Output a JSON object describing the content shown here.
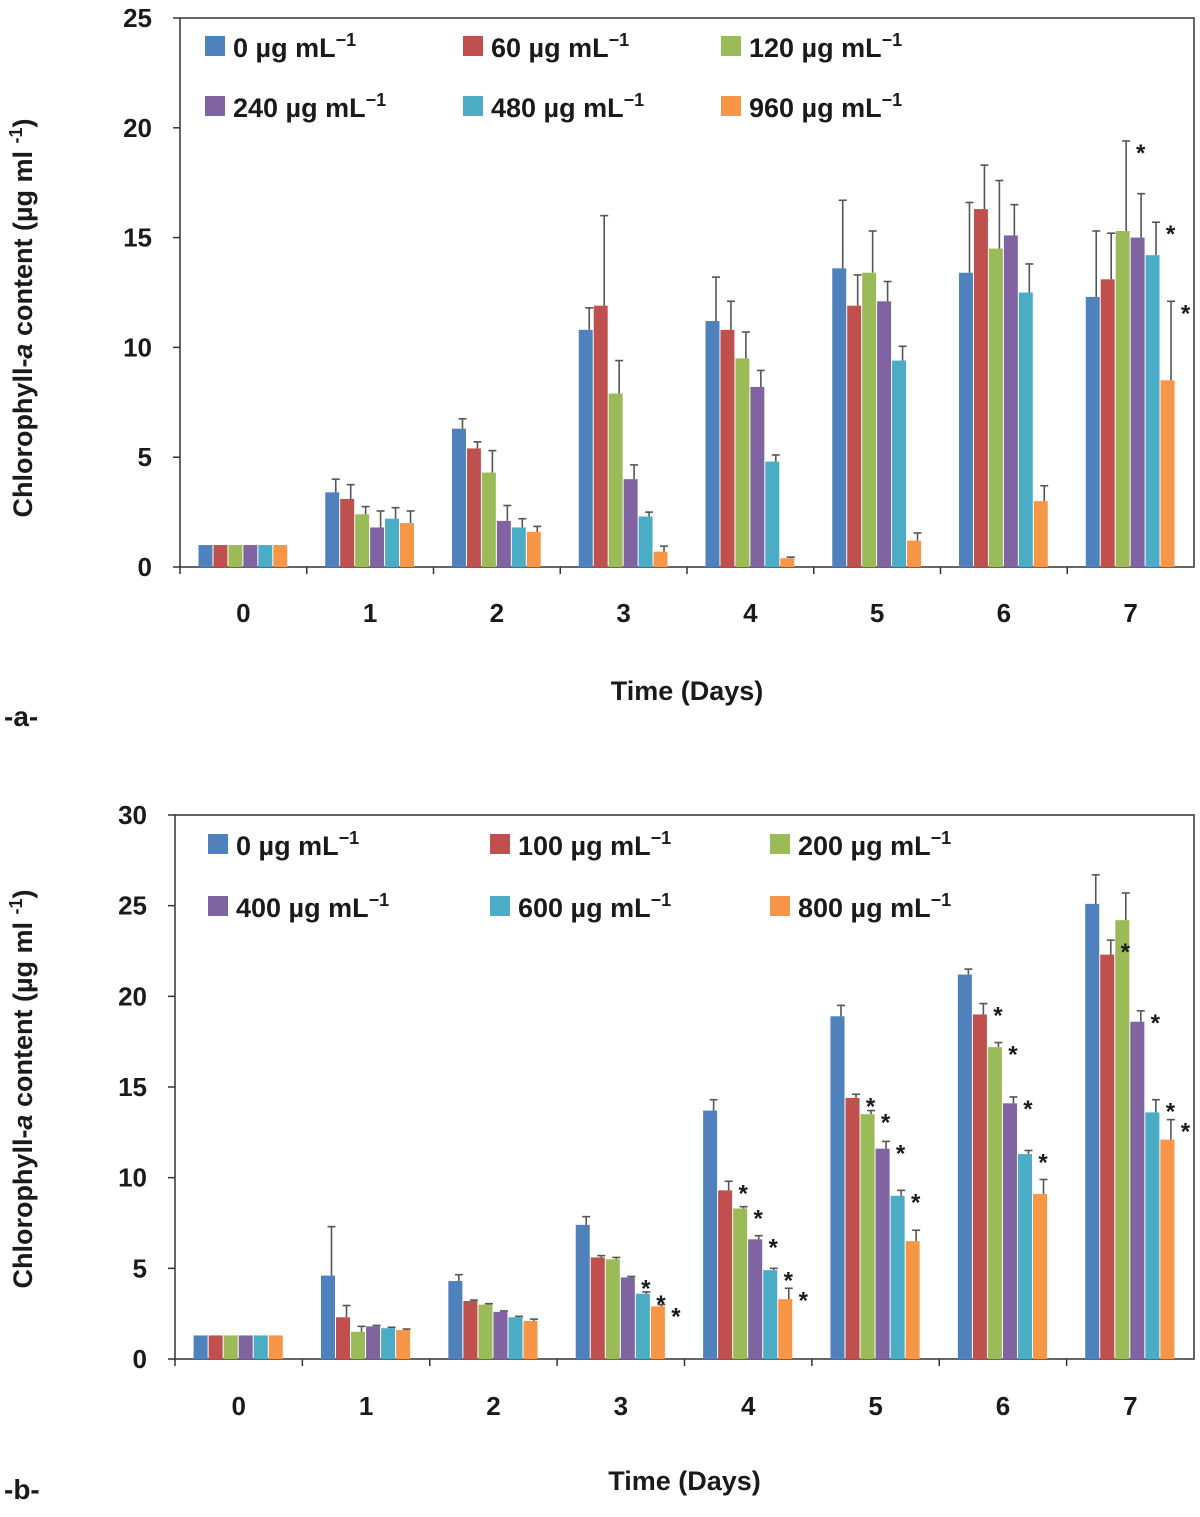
{
  "chart_data": [
    {
      "type": "bar",
      "panel_label": "-a-",
      "xlabel": "Time (Days)",
      "ylabel": "Chlorophyll-a content (µg ml -1)",
      "ylabel_parts": {
        "prefix": "Chlorophyll-",
        "italic": "a",
        "suffix": " content (µg ml ",
        "sup": "-1",
        "close": ")"
      },
      "ylim": [
        0,
        25
      ],
      "yticks": [
        "0",
        "5",
        "10",
        "15",
        "20",
        "25"
      ],
      "categories": [
        "0",
        "1",
        "2",
        "3",
        "4",
        "5",
        "6",
        "7"
      ],
      "legend_position": "top",
      "series": [
        {
          "name": "0 µg mL⁻¹",
          "label": "0 µg mL",
          "sup": "−1",
          "color": "#4F81BD",
          "values": [
            1.0,
            3.4,
            6.3,
            10.8,
            11.2,
            13.6,
            13.4,
            12.3
          ],
          "errors": [
            0.0,
            0.6,
            0.45,
            1.0,
            2.0,
            3.1,
            3.2,
            3.0
          ]
        },
        {
          "name": "60 µg mL⁻¹",
          "label": "60 µg mL",
          "sup": "−1",
          "color": "#C0504D",
          "values": [
            1.0,
            3.1,
            5.4,
            11.9,
            10.8,
            11.9,
            16.3,
            13.1
          ],
          "errors": [
            0.0,
            0.65,
            0.3,
            4.1,
            1.3,
            1.4,
            2.0,
            2.1
          ]
        },
        {
          "name": "120 µg mL⁻¹",
          "label": "120 µg mL",
          "sup": "−1",
          "color": "#9BBB59",
          "values": [
            1.0,
            2.4,
            4.3,
            7.9,
            9.5,
            13.4,
            14.5,
            15.3
          ],
          "errors": [
            0.0,
            0.35,
            1.0,
            1.5,
            1.2,
            1.9,
            3.1,
            4.1
          ]
        },
        {
          "name": "240 µg mL⁻¹",
          "label": "240 µg mL",
          "sup": "−1",
          "color": "#8064A2",
          "values": [
            1.0,
            1.8,
            2.1,
            4.0,
            8.2,
            12.1,
            15.1,
            15.0
          ],
          "errors": [
            0.0,
            0.75,
            0.7,
            0.65,
            0.75,
            0.9,
            1.4,
            2.0
          ]
        },
        {
          "name": "480 µg mL⁻¹",
          "label": "480 µg mL",
          "sup": "−1",
          "color": "#4BACC6",
          "values": [
            1.0,
            2.2,
            1.8,
            2.3,
            4.8,
            9.4,
            12.5,
            14.2
          ],
          "errors": [
            0.0,
            0.5,
            0.4,
            0.2,
            0.3,
            0.65,
            1.3,
            1.5
          ]
        },
        {
          "name": "960 µg mL⁻¹",
          "label": "960 µg mL",
          "sup": "−1",
          "color": "#F79646",
          "values": [
            1.0,
            2.0,
            1.6,
            0.7,
            0.4,
            1.2,
            3.0,
            8.5
          ],
          "errors": [
            0.0,
            0.55,
            0.25,
            0.25,
            0.05,
            0.35,
            0.7,
            3.6
          ]
        }
      ],
      "significance": [
        {
          "category": "7",
          "series": "120 µg mL⁻¹",
          "mark": "*"
        },
        {
          "category": "7",
          "series": "480 µg mL⁻¹",
          "mark": "*"
        },
        {
          "category": "7",
          "series": "960 µg mL⁻¹",
          "mark": "*"
        }
      ]
    },
    {
      "type": "bar",
      "panel_label": "-b-",
      "xlabel": "Time (Days)",
      "ylabel": "Chlorophyll-a content (µg ml -1)",
      "ylabel_parts": {
        "prefix": "Chlorophyll-",
        "italic": "a",
        "suffix": " content (µg ml ",
        "sup": "-1",
        "close": ")"
      },
      "ylim": [
        0,
        30
      ],
      "yticks": [
        "0",
        "5",
        "10",
        "15",
        "20",
        "25",
        "30"
      ],
      "categories": [
        "0",
        "1",
        "2",
        "3",
        "4",
        "5",
        "6",
        "7"
      ],
      "legend_position": "top",
      "series": [
        {
          "name": "0 µg mL⁻¹",
          "label": "0 µg mL",
          "sup": "−1",
          "color": "#4F81BD",
          "values": [
            1.3,
            4.6,
            4.3,
            7.4,
            13.7,
            18.9,
            21.2,
            25.1
          ],
          "errors": [
            0.0,
            2.7,
            0.35,
            0.45,
            0.6,
            0.6,
            0.3,
            1.6
          ]
        },
        {
          "name": "100 µg mL⁻¹",
          "label": "100 µg mL",
          "sup": "−1",
          "color": "#C0504D",
          "values": [
            1.3,
            2.3,
            3.2,
            5.6,
            9.3,
            14.4,
            19.0,
            22.3
          ],
          "errors": [
            0.0,
            0.65,
            0.05,
            0.1,
            0.5,
            0.2,
            0.6,
            0.8
          ]
        },
        {
          "name": "200 µg mL⁻¹",
          "label": "200 µg mL",
          "sup": "−1",
          "color": "#9BBB59",
          "values": [
            1.3,
            1.5,
            3.0,
            5.5,
            8.3,
            13.5,
            17.2,
            24.2
          ],
          "errors": [
            0.0,
            0.3,
            0.05,
            0.1,
            0.1,
            0.2,
            0.25,
            1.5
          ]
        },
        {
          "name": "400 µg mL⁻¹",
          "label": "400 µg mL",
          "sup": "−1",
          "color": "#8064A2",
          "values": [
            1.3,
            1.8,
            2.6,
            4.5,
            6.6,
            11.6,
            14.1,
            18.6
          ],
          "errors": [
            0.0,
            0.05,
            0.05,
            0.05,
            0.2,
            0.4,
            0.35,
            0.6
          ]
        },
        {
          "name": "600 µg mL⁻¹",
          "label": "600 µg mL",
          "sup": "−1",
          "color": "#4BACC6",
          "values": [
            1.3,
            1.7,
            2.3,
            3.6,
            4.9,
            9.0,
            11.3,
            13.6
          ],
          "errors": [
            0.0,
            0.05,
            0.05,
            0.1,
            0.1,
            0.3,
            0.2,
            0.7
          ]
        },
        {
          "name": "800 µg mL⁻¹",
          "label": "800 µg mL",
          "sup": "−1",
          "color": "#F79646",
          "values": [
            1.3,
            1.6,
            2.1,
            2.9,
            3.3,
            6.5,
            9.1,
            12.1
          ],
          "errors": [
            0.0,
            0.05,
            0.1,
            0.1,
            0.6,
            0.6,
            0.8,
            1.1
          ]
        }
      ],
      "significance": [
        {
          "category": "3",
          "series": "400 µg mL⁻¹",
          "mark": "*"
        },
        {
          "category": "3",
          "series": "600 µg mL⁻¹",
          "mark": "*"
        },
        {
          "category": "3",
          "series": "800 µg mL⁻¹",
          "mark": "*"
        },
        {
          "category": "4",
          "series": "100 µg mL⁻¹",
          "mark": "*"
        },
        {
          "category": "4",
          "series": "200 µg mL⁻¹",
          "mark": "*"
        },
        {
          "category": "4",
          "series": "400 µg mL⁻¹",
          "mark": "*"
        },
        {
          "category": "4",
          "series": "600 µg mL⁻¹",
          "mark": "*"
        },
        {
          "category": "4",
          "series": "800 µg mL⁻¹",
          "mark": "*"
        },
        {
          "category": "5",
          "series": "100 µg mL⁻¹",
          "mark": "*"
        },
        {
          "category": "5",
          "series": "200 µg mL⁻¹",
          "mark": "*"
        },
        {
          "category": "5",
          "series": "400 µg mL⁻¹",
          "mark": "*"
        },
        {
          "category": "5",
          "series": "600 µg mL⁻¹",
          "mark": "*"
        },
        {
          "category": "6",
          "series": "100 µg mL⁻¹",
          "mark": "*"
        },
        {
          "category": "6",
          "series": "200 µg mL⁻¹",
          "mark": "*"
        },
        {
          "category": "6",
          "series": "400 µg mL⁻¹",
          "mark": "*"
        },
        {
          "category": "6",
          "series": "600 µg mL⁻¹",
          "mark": "*"
        },
        {
          "category": "7",
          "series": "100 µg mL⁻¹",
          "mark": "*"
        },
        {
          "category": "7",
          "series": "400 µg mL⁻¹",
          "mark": "*"
        },
        {
          "category": "7",
          "series": "600 µg mL⁻¹",
          "mark": "*"
        },
        {
          "category": "7",
          "series": "800 µg mL⁻¹",
          "mark": "*"
        }
      ]
    }
  ]
}
